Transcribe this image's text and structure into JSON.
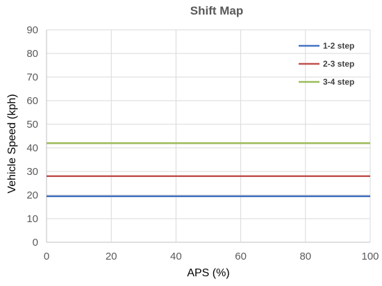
{
  "chart_data": {
    "type": "line",
    "title": "Shift Map",
    "xlabel": "APS (%)",
    "ylabel": "Vehicle Speed (kph)",
    "xlim": [
      0,
      100
    ],
    "ylim": [
      0,
      90
    ],
    "x_ticks": [
      0,
      20,
      40,
      60,
      80,
      100
    ],
    "y_ticks": [
      0,
      10,
      20,
      30,
      40,
      50,
      60,
      70,
      80,
      90
    ],
    "grid": true,
    "legend_position": "top-right",
    "series": [
      {
        "name": "1-2 step",
        "color": "#4472c4",
        "x": [
          0,
          100
        ],
        "y": [
          19.5,
          19.5
        ]
      },
      {
        "name": "2-3 step",
        "color": "#c0504d",
        "x": [
          0,
          100
        ],
        "y": [
          28,
          28
        ]
      },
      {
        "name": "3-4 step",
        "color": "#9bbb59",
        "x": [
          0,
          100
        ],
        "y": [
          42,
          42
        ]
      }
    ]
  }
}
